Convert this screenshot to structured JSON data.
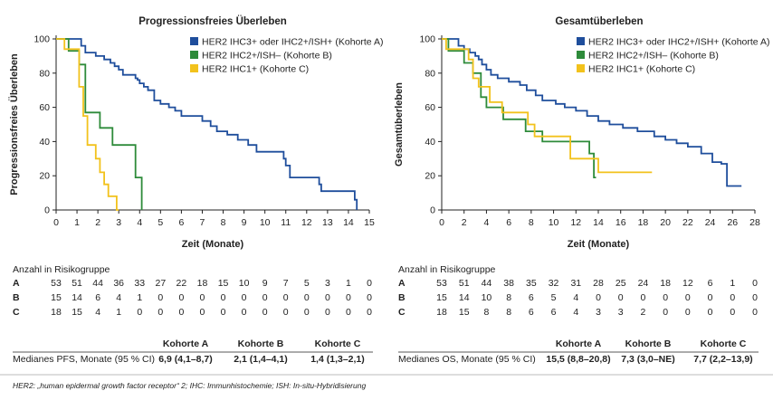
{
  "colors": {
    "A": "#1f4e9c",
    "B": "#2e8b3a",
    "C": "#f2c21c",
    "axis": "#222222"
  },
  "footnote": "HER2: „human epidermal growth factor receptor“ 2; IHC: Immunhistochemie; ISH: In-situ-Hybridisierung",
  "chart_data": [
    {
      "type": "line",
      "title": "Progressionsfreies Überleben",
      "xlabel": "Zeit (Monate)",
      "ylabel": "Progressionsfreies Überleben",
      "xlim": [
        0,
        15
      ],
      "ylim": [
        0,
        100
      ],
      "xticks": [
        0,
        1,
        2,
        3,
        4,
        5,
        6,
        7,
        8,
        9,
        10,
        11,
        12,
        13,
        14,
        15
      ],
      "yticks": [
        0,
        20,
        40,
        60,
        80,
        100
      ],
      "legend_position": "top-right",
      "series": [
        {
          "key": "A",
          "name": "HER2 IHC3+ oder IHC2+/ISH+ (Kohorte A)",
          "color": "#1f4e9c",
          "x": [
            0,
            1.2,
            1.4,
            1.9,
            2.3,
            2.6,
            2.8,
            3.0,
            3.2,
            3.8,
            3.9,
            4.0,
            4.2,
            4.4,
            4.7,
            5.0,
            5.4,
            5.7,
            6.0,
            7.0,
            7.4,
            7.7,
            8.2,
            8.7,
            9.2,
            9.6,
            10.9,
            11.0,
            11.2,
            12.6,
            12.7,
            14.0,
            14.3,
            14.4
          ],
          "y": [
            100,
            96,
            92,
            90,
            88,
            86,
            84,
            82,
            79,
            77,
            76,
            74,
            72,
            70,
            64,
            62,
            60,
            58,
            55,
            52,
            49,
            46,
            44,
            41,
            38,
            34,
            30,
            26,
            19,
            15,
            11,
            11,
            6,
            0
          ]
        },
        {
          "key": "B",
          "name": "HER2 IHC2+/ISH– (Kohorte B)",
          "color": "#2e8b3a",
          "x": [
            0,
            0.6,
            1.1,
            1.4,
            2.1,
            2.7,
            3.8,
            4.1
          ],
          "y": [
            100,
            93,
            85,
            57,
            48,
            38,
            19,
            0
          ]
        },
        {
          "key": "C",
          "name": "HER2 IHC1+ (Kohorte C)",
          "color": "#f2c21c",
          "x": [
            0,
            0.4,
            1.1,
            1.3,
            1.5,
            1.9,
            2.1,
            2.3,
            2.5,
            2.9,
            3.0
          ],
          "y": [
            100,
            94,
            72,
            55,
            38,
            30,
            22,
            15,
            8,
            0,
            0
          ]
        }
      ],
      "risk_table": {
        "header": "Anzahl in Risikogruppe",
        "times": [
          0,
          1,
          2,
          3,
          4,
          5,
          6,
          7,
          8,
          9,
          10,
          11,
          12,
          13,
          14,
          15
        ],
        "rows": [
          {
            "group": "A",
            "values": [
              "53",
              "51",
              "44",
              "36",
              "33",
              "27",
              "22",
              "18",
              "15",
              "10",
              "9",
              "7",
              "5",
              "3",
              "1",
              "0"
            ]
          },
          {
            "group": "B",
            "values": [
              "15",
              "14",
              "6",
              "4",
              "1",
              "0",
              "0",
              "0",
              "0",
              "0",
              "0",
              "0",
              "0",
              "0",
              "0",
              "0"
            ]
          },
          {
            "group": "C",
            "values": [
              "18",
              "15",
              "4",
              "1",
              "0",
              "0",
              "0",
              "0",
              "0",
              "0",
              "0",
              "0",
              "0",
              "0",
              "0",
              "0"
            ]
          }
        ]
      },
      "median": {
        "label": "Medianes PFS, Monate (95 % CI)",
        "headers": [
          "Kohorte A",
          "Kohorte B",
          "Kohorte C"
        ],
        "values": [
          "6,9 (4,1–8,7)",
          "2,1 (1,4–4,1)",
          "1,4 (1,3–2,1)"
        ]
      }
    },
    {
      "type": "line",
      "title": "Gesamtüberleben",
      "xlabel": "Zeit (Monate)",
      "ylabel": "Gesamtüberleben",
      "xlim": [
        0,
        28
      ],
      "ylim": [
        0,
        100
      ],
      "xticks": [
        0,
        2,
        4,
        6,
        8,
        10,
        12,
        14,
        16,
        18,
        20,
        22,
        24,
        26,
        28
      ],
      "yticks": [
        0,
        20,
        40,
        60,
        80,
        100
      ],
      "legend_position": "top-right",
      "series": [
        {
          "key": "A",
          "name": "HER2 IHC3+ oder IHC2+/ISH+ (Kohorte A)",
          "color": "#1f4e9c",
          "x": [
            0,
            1.5,
            2.0,
            2.5,
            3.0,
            3.3,
            3.6,
            4.0,
            4.4,
            5.0,
            6.0,
            7.0,
            7.6,
            8.4,
            9.0,
            10.2,
            11.0,
            12.0,
            13.0,
            14.0,
            15.0,
            16.2,
            17.5,
            19.0,
            20.0,
            21.0,
            22.0,
            23.2,
            24.2,
            25.0,
            25.5,
            26.8
          ],
          "y": [
            100,
            96,
            94,
            92,
            90,
            88,
            85,
            82,
            79,
            77,
            75,
            73,
            70,
            67,
            64,
            62,
            60,
            58,
            55,
            52,
            50,
            48,
            46,
            43,
            41,
            39,
            37,
            33,
            28,
            27,
            14,
            14
          ]
        },
        {
          "key": "B",
          "name": "HER2 IHC2+/ISH– (Kohorte B)",
          "color": "#2e8b3a",
          "x": [
            0,
            0.6,
            2.0,
            2.8,
            3.5,
            4.0,
            5.5,
            7.5,
            9.0,
            13.2,
            13.6,
            13.8
          ],
          "y": [
            100,
            93,
            86,
            80,
            66,
            60,
            53,
            46,
            40,
            33,
            19,
            19
          ]
        },
        {
          "key": "C",
          "name": "HER2 IHC1+ (Kohorte C)",
          "color": "#f2c21c",
          "x": [
            0,
            0.4,
            2.4,
            2.8,
            3.3,
            4.3,
            5.4,
            7.7,
            8.3,
            11.5,
            13.8,
            14.0,
            18.8
          ],
          "y": [
            100,
            94,
            88,
            77,
            72,
            63,
            57,
            50,
            43,
            30,
            30,
            22,
            22
          ]
        }
      ],
      "risk_table": {
        "header": "Anzahl in Risikogruppe",
        "times": [
          0,
          2,
          4,
          6,
          8,
          10,
          12,
          14,
          16,
          18,
          20,
          22,
          24,
          26,
          28
        ],
        "rows": [
          {
            "group": "A",
            "values": [
              "53",
              "51",
              "44",
              "38",
              "35",
              "32",
              "31",
              "28",
              "25",
              "24",
              "18",
              "12",
              "6",
              "1",
              "0"
            ]
          },
          {
            "group": "B",
            "values": [
              "15",
              "14",
              "10",
              "8",
              "6",
              "5",
              "4",
              "0",
              "0",
              "0",
              "0",
              "0",
              "0",
              "0",
              "0"
            ]
          },
          {
            "group": "C",
            "values": [
              "18",
              "15",
              "8",
              "8",
              "6",
              "6",
              "4",
              "3",
              "3",
              "2",
              "0",
              "0",
              "0",
              "0",
              "0"
            ]
          }
        ]
      },
      "median": {
        "label": "Medianes OS, Monate (95 % CI)",
        "headers": [
          "Kohorte A",
          "Kohorte B",
          "Kohorte C"
        ],
        "values": [
          "15,5 (8,8–20,8)",
          "7,3 (3,0–NE)",
          "7,7 (2,2–13,9)"
        ]
      }
    }
  ]
}
